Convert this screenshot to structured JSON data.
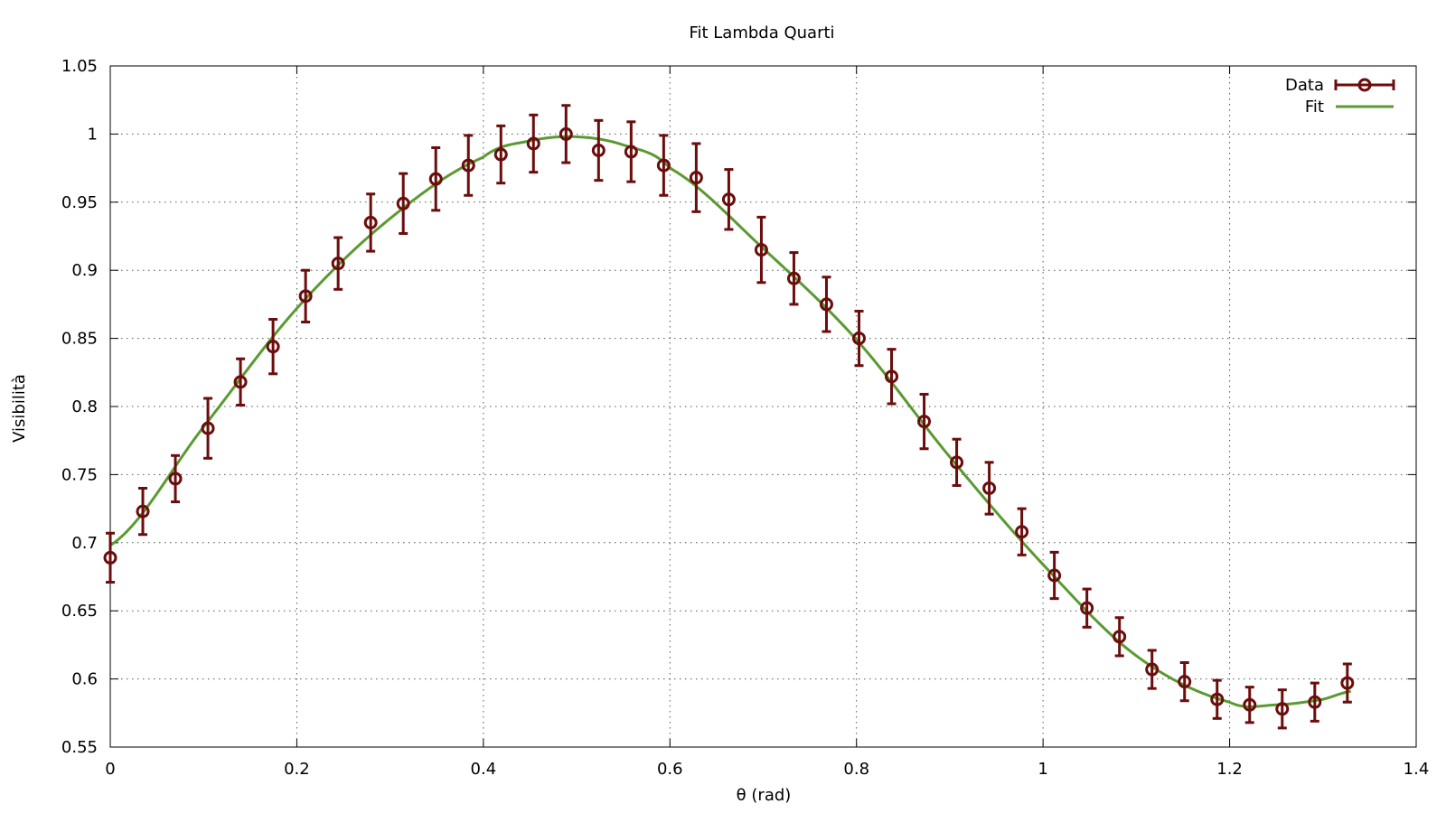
{
  "chart_data": {
    "type": "scatter",
    "title": "Fit Lambda Quarti",
    "xlabel": "θ (rad)",
    "ylabel": "Visibilità",
    "xlim": [
      0,
      1.4
    ],
    "ylim": [
      0.55,
      1.05
    ],
    "xticks": [
      0,
      0.2,
      0.4,
      0.6,
      0.8,
      1,
      1.2,
      1.4
    ],
    "xtick_labels": [
      "0",
      "0.2",
      "0.4",
      "0.6",
      "0.8",
      "1",
      "1.2",
      "1.4"
    ],
    "yticks": [
      0.55,
      0.6,
      0.65,
      0.7,
      0.75,
      0.8,
      0.85,
      0.9,
      0.95,
      1,
      1.05
    ],
    "ytick_labels": [
      "0.55",
      "0.6",
      "0.65",
      "0.7",
      "0.75",
      "0.8",
      "0.85",
      "0.9",
      "0.95",
      "1",
      "1.05"
    ],
    "grid": true,
    "legend_position": "top-right",
    "series": [
      {
        "name": "Data",
        "kind": "points-with-errorbars",
        "color": "#6b0d0d",
        "x": [
          0,
          0.0349,
          0.0698,
          0.1047,
          0.1396,
          0.1745,
          0.2094,
          0.2443,
          0.2792,
          0.3141,
          0.349,
          0.3839,
          0.4188,
          0.4537,
          0.4886,
          0.5235,
          0.5584,
          0.5933,
          0.6282,
          0.6631,
          0.698,
          0.7329,
          0.7678,
          0.8027,
          0.8376,
          0.8725,
          0.9074,
          0.9423,
          0.9772,
          1.0121,
          1.047,
          1.0819,
          1.1168,
          1.1517,
          1.1866,
          1.2215,
          1.2564,
          1.2913,
          1.3262
        ],
        "y": [
          0.689,
          0.723,
          0.747,
          0.784,
          0.818,
          0.844,
          0.881,
          0.905,
          0.935,
          0.949,
          0.967,
          0.977,
          0.985,
          0.993,
          1.0,
          0.988,
          0.987,
          0.977,
          0.968,
          0.952,
          0.915,
          0.894,
          0.875,
          0.85,
          0.822,
          0.789,
          0.759,
          0.74,
          0.708,
          0.676,
          0.652,
          0.631,
          0.607,
          0.598,
          0.585,
          0.581,
          0.578,
          0.583,
          0.597
        ],
        "yerr": [
          0.018,
          0.017,
          0.017,
          0.022,
          0.017,
          0.02,
          0.019,
          0.019,
          0.021,
          0.022,
          0.023,
          0.022,
          0.021,
          0.021,
          0.021,
          0.022,
          0.022,
          0.022,
          0.025,
          0.022,
          0.024,
          0.019,
          0.02,
          0.02,
          0.02,
          0.02,
          0.017,
          0.019,
          0.017,
          0.017,
          0.014,
          0.014,
          0.014,
          0.014,
          0.014,
          0.013,
          0.014,
          0.014,
          0.014
        ]
      },
      {
        "name": "Fit",
        "kind": "line",
        "color": "#5a9a32",
        "x": [
          0,
          0.1,
          0.2,
          0.3,
          0.4,
          0.45,
          0.5,
          0.55,
          0.6,
          0.7,
          0.8,
          0.9,
          1.0,
          1.1,
          1.2,
          1.25,
          1.3,
          1.33
        ],
        "y": [
          0.698,
          0.785,
          0.872,
          0.938,
          0.983,
          0.995,
          0.998,
          0.992,
          0.975,
          0.916,
          0.849,
          0.763,
          0.684,
          0.617,
          0.583,
          0.581,
          0.585,
          0.591
        ]
      }
    ]
  }
}
